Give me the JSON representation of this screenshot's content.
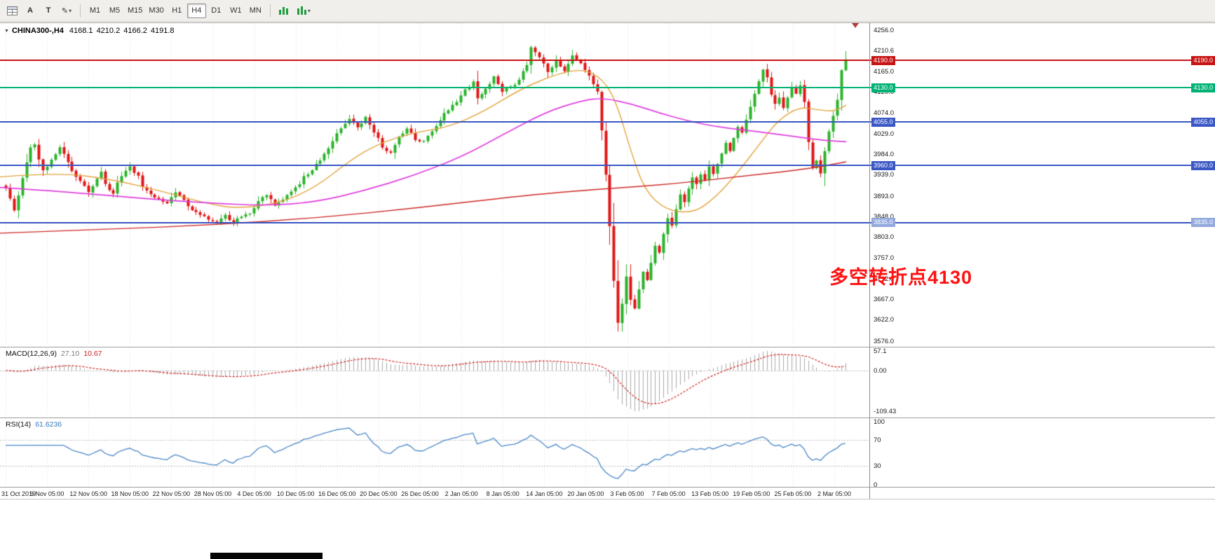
{
  "toolbar": {
    "tool_a": "A",
    "tool_t": "T",
    "timeframes": [
      "M1",
      "M5",
      "M15",
      "M30",
      "H1",
      "H4",
      "D1",
      "W1",
      "MN"
    ],
    "active_timeframe": "H4"
  },
  "icons": {
    "grid_glyph": "▦",
    "pen_glyph": "✎",
    "caret_glyph": "▾",
    "collapse_glyph": "▼"
  },
  "title": {
    "symbol": "CHINA300-,H4",
    "open": "4168.1",
    "high": "4210.2",
    "low": "4166.2",
    "close": "4191.8"
  },
  "price_axis": {
    "labels": [
      "4256.0",
      "4210.6",
      "4165.0",
      "4120.0",
      "4074.0",
      "4029.0",
      "3984.0",
      "3939.0",
      "3893.0",
      "3848.0",
      "3803.0",
      "3757.0",
      "3712.0",
      "3667.0",
      "3622.0",
      "3576.0"
    ]
  },
  "hlines": [
    {
      "price": 4190.0,
      "label": "4190.0",
      "color": "#c81414",
      "badge_color": "#c81414"
    },
    {
      "price": 4130.0,
      "label": "4130.0",
      "color": "#00b273",
      "badge_color": "#00b273"
    },
    {
      "price": 4055.0,
      "label": "4055.0",
      "color": "#3a57c4",
      "badge_color": "#3a57c4"
    },
    {
      "price": 3960.0,
      "label": "3960.0",
      "color": "#3a57c4",
      "badge_color": "#3a57c4"
    },
    {
      "price": 3835.0,
      "label": "3835.0",
      "color": "#3a57c4",
      "badge_color": "#93a9dd"
    }
  ],
  "annotation": {
    "text": "多空转折点4130",
    "color": "#ff1111"
  },
  "macd": {
    "label": "MACD(12,26,9)",
    "main_value": "27.10",
    "signal_value": "10.67",
    "axis_labels": [
      "57.1",
      "0.00",
      "-109.43"
    ],
    "range": [
      57.1,
      -109.43
    ],
    "histogram_color": "#a9a9a9",
    "signal_color": "#d02020"
  },
  "rsi": {
    "label": "RSI(14)",
    "value": "61.6236",
    "axis_labels": [
      "100",
      "70",
      "30",
      "0"
    ],
    "levels": [
      70,
      30
    ],
    "range": [
      0,
      100
    ],
    "line_color": "#4a86c8"
  },
  "time_axis": [
    "31 Oct 2019",
    "6 Nov 05:00",
    "12 Nov 05:00",
    "18 Nov 05:00",
    "22 Nov 05:00",
    "28 Nov 05:00",
    "4 Dec 05:00",
    "10 Dec 05:00",
    "16 Dec 05:00",
    "20 Dec 05:00",
    "26 Dec 05:00",
    "2 Jan 05:00",
    "8 Jan 05:00",
    "14 Jan 05:00",
    "20 Jan 05:00",
    "3 Feb 05:00",
    "7 Feb 05:00",
    "13 Feb 05:00",
    "19 Feb 05:00",
    "25 Feb 05:00",
    "2 Mar 05:00"
  ],
  "chart_data": {
    "type": "candlestick",
    "symbol": "CHINA300-",
    "timeframe": "H4",
    "ylim": [
      3576.0,
      4256.0
    ],
    "up_color": "#2bb32b",
    "down_color": "#e01515",
    "last_candle": {
      "open": 4168.1,
      "high": 4210.2,
      "low": 4166.2,
      "close": 4191.8
    },
    "close_anchors": [
      [
        0,
        3908
      ],
      [
        1,
        3885
      ],
      [
        2,
        3860
      ],
      [
        3,
        3895
      ],
      [
        4,
        3930
      ],
      [
        5,
        3968
      ],
      [
        6,
        3998
      ],
      [
        7,
        4006
      ],
      [
        8,
        3975
      ],
      [
        9,
        3948
      ],
      [
        11,
        3972
      ],
      [
        12,
        3985
      ],
      [
        13,
        4002
      ],
      [
        15,
        3968
      ],
      [
        16,
        3945
      ],
      [
        18,
        3925
      ],
      [
        20,
        3902
      ],
      [
        22,
        3928
      ],
      [
        23,
        3944
      ],
      [
        24,
        3920
      ],
      [
        26,
        3898
      ],
      [
        27,
        3925
      ],
      [
        30,
        3958
      ],
      [
        32,
        3935
      ],
      [
        33,
        3915
      ],
      [
        36,
        3892
      ],
      [
        39,
        3878
      ],
      [
        41,
        3904
      ],
      [
        43,
        3885
      ],
      [
        45,
        3862
      ],
      [
        48,
        3846
      ],
      [
        51,
        3837
      ],
      [
        53,
        3852
      ],
      [
        55,
        3833
      ],
      [
        57,
        3850
      ],
      [
        59,
        3856
      ],
      [
        61,
        3882
      ],
      [
        63,
        3894
      ],
      [
        65,
        3873
      ],
      [
        67,
        3886
      ],
      [
        70,
        3910
      ],
      [
        72,
        3934
      ],
      [
        74,
        3950
      ],
      [
        76,
        3972
      ],
      [
        78,
        3998
      ],
      [
        80,
        4028
      ],
      [
        82,
        4052
      ],
      [
        83,
        4062
      ],
      [
        85,
        4046
      ],
      [
        87,
        4063
      ],
      [
        89,
        4035
      ],
      [
        91,
        3999
      ],
      [
        93,
        3991
      ],
      [
        95,
        4024
      ],
      [
        97,
        4042
      ],
      [
        99,
        4016
      ],
      [
        101,
        4013
      ],
      [
        103,
        4036
      ],
      [
        105,
        4062
      ],
      [
        107,
        4084
      ],
      [
        109,
        4100
      ],
      [
        111,
        4126
      ],
      [
        113,
        4142
      ],
      [
        114,
        4110
      ],
      [
        116,
        4128
      ],
      [
        118,
        4152
      ],
      [
        120,
        4120
      ],
      [
        122,
        4132
      ],
      [
        124,
        4145
      ],
      [
        126,
        4182
      ],
      [
        127,
        4220
      ],
      [
        129,
        4196
      ],
      [
        131,
        4166
      ],
      [
        133,
        4188
      ],
      [
        135,
        4164
      ],
      [
        137,
        4202
      ],
      [
        139,
        4180
      ],
      [
        141,
        4158
      ],
      [
        143,
        4122
      ],
      [
        144,
        4040
      ],
      [
        145,
        3940
      ],
      [
        146,
        3830
      ],
      [
        147,
        3710
      ],
      [
        148,
        3615
      ],
      [
        149,
        3655
      ],
      [
        150,
        3718
      ],
      [
        151,
        3668
      ],
      [
        152,
        3645
      ],
      [
        153,
        3690
      ],
      [
        154,
        3730
      ],
      [
        155,
        3712
      ],
      [
        156,
        3748
      ],
      [
        157,
        3785
      ],
      [
        158,
        3772
      ],
      [
        159,
        3812
      ],
      [
        160,
        3845
      ],
      [
        161,
        3828
      ],
      [
        162,
        3862
      ],
      [
        163,
        3896
      ],
      [
        164,
        3878
      ],
      [
        165,
        3912
      ],
      [
        166,
        3935
      ],
      [
        167,
        3918
      ],
      [
        168,
        3942
      ],
      [
        169,
        3928
      ],
      [
        170,
        3955
      ],
      [
        171,
        3938
      ],
      [
        172,
        3962
      ],
      [
        173,
        3985
      ],
      [
        174,
        4008
      ],
      [
        175,
        3992
      ],
      [
        176,
        4022
      ],
      [
        177,
        4048
      ],
      [
        178,
        4035
      ],
      [
        179,
        4062
      ],
      [
        180,
        4088
      ],
      [
        181,
        4115
      ],
      [
        182,
        4145
      ],
      [
        183,
        4172
      ],
      [
        184,
        4150
      ],
      [
        185,
        4118
      ],
      [
        186,
        4092
      ],
      [
        187,
        4112
      ],
      [
        188,
        4088
      ],
      [
        189,
        4108
      ],
      [
        190,
        4132
      ],
      [
        191,
        4118
      ],
      [
        192,
        4138
      ],
      [
        193,
        4098
      ],
      [
        194,
        4010
      ],
      [
        195,
        3952
      ],
      [
        196,
        3968
      ],
      [
        197,
        3944
      ],
      [
        198,
        3992
      ],
      [
        199,
        4032
      ],
      [
        200,
        4068
      ],
      [
        201,
        4105
      ],
      [
        202,
        4168
      ],
      [
        203,
        4191.8
      ]
    ],
    "ma_lines": [
      {
        "name": "ma-fast-orange",
        "color": "#e2a43c",
        "width": 1.4,
        "points": [
          [
            0,
            3935
          ],
          [
            80,
            3945
          ],
          [
            160,
            3930
          ],
          [
            240,
            3900
          ],
          [
            300,
            3875
          ],
          [
            340,
            3866
          ],
          [
            400,
            3878
          ],
          [
            450,
            3912
          ],
          [
            500,
            3972
          ],
          [
            540,
            4008
          ],
          [
            590,
            4032
          ],
          [
            640,
            4044
          ],
          [
            690,
            4078
          ],
          [
            740,
            4125
          ],
          [
            790,
            4158
          ],
          [
            830,
            4172
          ],
          [
            860,
            4150
          ],
          [
            880,
            4095
          ],
          [
            900,
            3990
          ],
          [
            920,
            3905
          ],
          [
            950,
            3862
          ],
          [
            990,
            3856
          ],
          [
            1020,
            3890
          ],
          [
            1050,
            3940
          ],
          [
            1080,
            4000
          ],
          [
            1110,
            4060
          ],
          [
            1140,
            4088
          ],
          [
            1165,
            4082
          ],
          [
            1190,
            4078
          ],
          [
            1207,
            4092
          ]
        ]
      },
      {
        "name": "ma-mid-magenta",
        "color": "#df3fdf",
        "width": 1.7,
        "points": [
          [
            0,
            3912
          ],
          [
            100,
            3902
          ],
          [
            200,
            3888
          ],
          [
            300,
            3878
          ],
          [
            380,
            3872
          ],
          [
            450,
            3880
          ],
          [
            520,
            3905
          ],
          [
            590,
            3938
          ],
          [
            660,
            3980
          ],
          [
            720,
            4030
          ],
          [
            780,
            4078
          ],
          [
            830,
            4102
          ],
          [
            860,
            4108
          ],
          [
            900,
            4095
          ],
          [
            940,
            4075
          ],
          [
            980,
            4058
          ],
          [
            1020,
            4045
          ],
          [
            1060,
            4038
          ],
          [
            1100,
            4030
          ],
          [
            1140,
            4022
          ],
          [
            1175,
            4015
          ],
          [
            1207,
            4012
          ]
        ]
      },
      {
        "name": "ma-slow-red",
        "color": "#cf2626",
        "width": 1.4,
        "points": [
          [
            0,
            3812
          ],
          [
            150,
            3820
          ],
          [
            300,
            3830
          ],
          [
            450,
            3845
          ],
          [
            600,
            3868
          ],
          [
            750,
            3895
          ],
          [
            850,
            3908
          ],
          [
            950,
            3918
          ],
          [
            1050,
            3935
          ],
          [
            1150,
            3952
          ],
          [
            1207,
            3968
          ]
        ]
      }
    ]
  }
}
